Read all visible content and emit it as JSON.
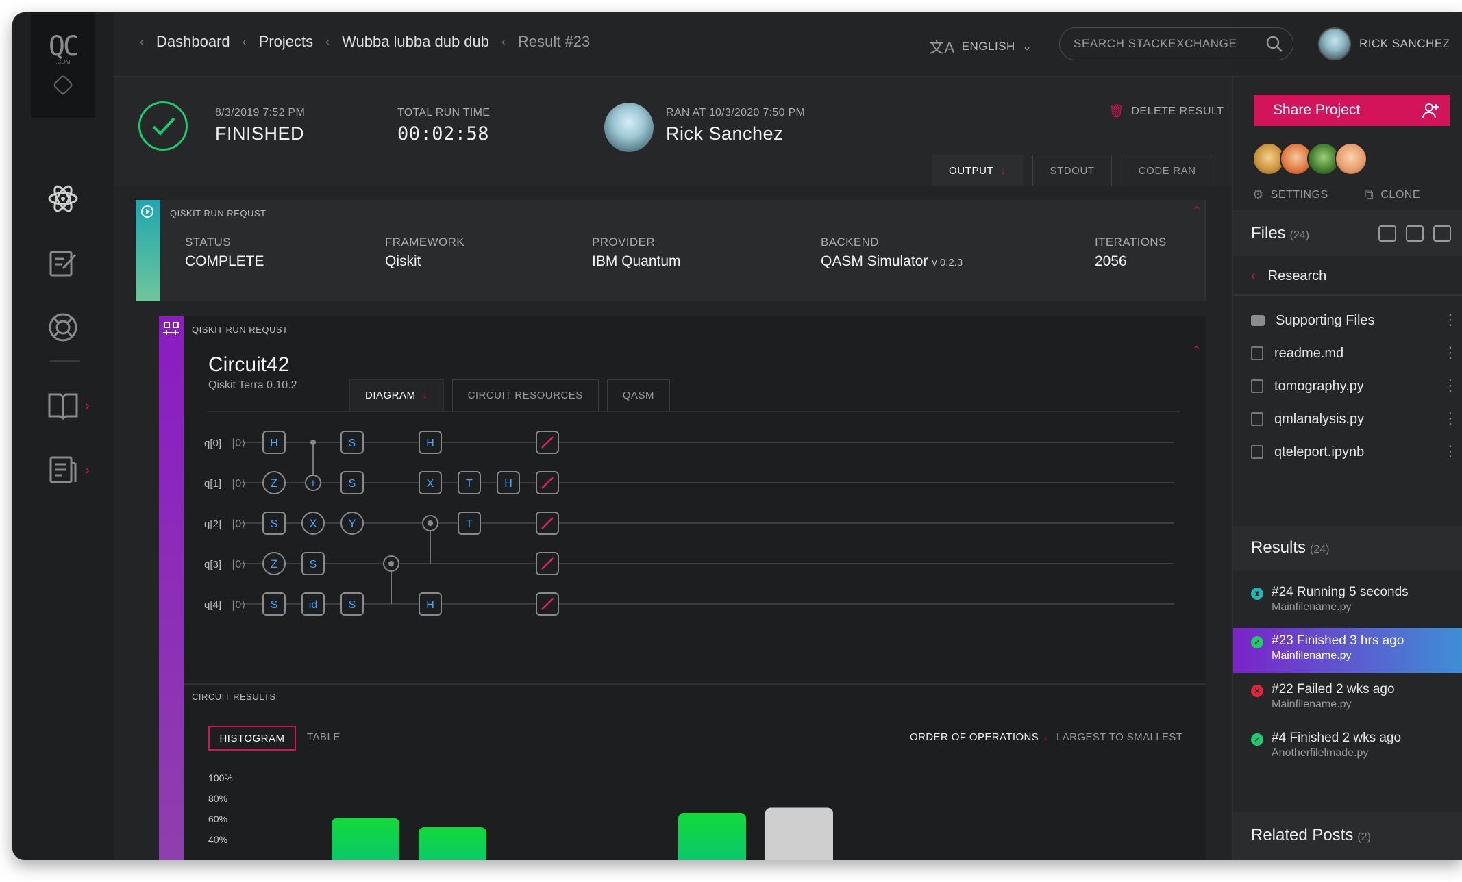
{
  "nav": {
    "logo_text": "QC",
    "logo_sub": ".COM"
  },
  "topbar": {
    "breadcrumbs": [
      "Dashboard",
      "Projects",
      "Wubba lubba dub dub",
      "Result #23"
    ],
    "language": "ENGLISH",
    "search_placeholder": "SEARCH STACKEXCHANGE",
    "user_name": "RICK SANCHEZ"
  },
  "header": {
    "date": "8/3/2019  7:52 PM",
    "status": "FINISHED",
    "run_time_label": "TOTAL RUN TIME",
    "run_time": "00:02:58",
    "ran_at": "RAN AT 10/3/2020  7:50 PM",
    "ran_by": "Rick Sanchez",
    "delete_label": "DELETE RESULT",
    "tabs": [
      "OUTPUT",
      "STDOUT",
      "CODE RAN"
    ]
  },
  "run_request": {
    "title": "QISKIT RUN REQUST",
    "status_label": "STATUS",
    "status": "COMPLETE",
    "framework_label": "FRAMEWORK",
    "framework": "Qiskit",
    "provider_label": "PROVIDER",
    "provider": "IBM Quantum",
    "backend_label": "BACKEND",
    "backend": "QASM Simulator",
    "backend_version": "v 0.2.3",
    "iterations_label": "ITERATIONS",
    "iterations": "2056"
  },
  "circuit": {
    "panel_title": "QISKIT RUN REQUST",
    "name": "Circuit42",
    "subtitle": "Qiskit Terra 0.10.2",
    "tabs": [
      "DIAGRAM",
      "CIRCUIT RESOURCES",
      "QASM"
    ],
    "qubits": [
      "q[0]",
      "q[1]",
      "q[2]",
      "q[3]",
      "q[4]"
    ],
    "ket": "|0⟩",
    "gates": [
      {
        "q": 0,
        "col": 0,
        "g": "H"
      },
      {
        "q": 0,
        "col": 2,
        "g": "S"
      },
      {
        "q": 0,
        "col": 4,
        "g": "H"
      },
      {
        "q": 0,
        "col": 7,
        "g": "M"
      },
      {
        "q": 1,
        "col": 0,
        "g": "Z"
      },
      {
        "q": 1,
        "col": 1,
        "g": "+"
      },
      {
        "q": 1,
        "col": 2,
        "g": "S"
      },
      {
        "q": 1,
        "col": 4,
        "g": "X"
      },
      {
        "q": 1,
        "col": 5,
        "g": "T"
      },
      {
        "q": 1,
        "col": 6,
        "g": "H"
      },
      {
        "q": 1,
        "col": 7,
        "g": "M"
      },
      {
        "q": 2,
        "col": 0,
        "g": "S"
      },
      {
        "q": 2,
        "col": 1,
        "g": "X"
      },
      {
        "q": 2,
        "col": 2,
        "g": "Y"
      },
      {
        "q": 2,
        "col": 4,
        "g": "+"
      },
      {
        "q": 2,
        "col": 5,
        "g": "T"
      },
      {
        "q": 2,
        "col": 7,
        "g": "M"
      },
      {
        "q": 3,
        "col": 0,
        "g": "Z"
      },
      {
        "q": 3,
        "col": 1,
        "g": "S"
      },
      {
        "q": 3,
        "col": 3,
        "g": "+"
      },
      {
        "q": 3,
        "col": 7,
        "g": "M"
      },
      {
        "q": 4,
        "col": 0,
        "g": "S"
      },
      {
        "q": 4,
        "col": 1,
        "g": "id"
      },
      {
        "q": 4,
        "col": 2,
        "g": "S"
      },
      {
        "q": 4,
        "col": 4,
        "g": "H"
      },
      {
        "q": 4,
        "col": 7,
        "g": "M"
      }
    ],
    "controls": [
      {
        "col": 1,
        "from": 0,
        "to": 1
      },
      {
        "col": 3,
        "from": 3,
        "to": 4
      },
      {
        "col": 4,
        "from": 2,
        "to": 3
      }
    ]
  },
  "results": {
    "title": "CIRCUIT RESULTS",
    "view_tabs": [
      "HISTOGRAM",
      "TABLE"
    ],
    "order_label": "ORDER OF OPERATIONS",
    "sort_label": "LARGEST TO SMALLEST"
  },
  "chart_data": {
    "type": "bar",
    "yticks": [
      "100%",
      "80%",
      "60%",
      "40%"
    ],
    "ylim": [
      40,
      100
    ],
    "bars": [
      {
        "value": 61,
        "color": "green"
      },
      {
        "value": 52,
        "color": "green"
      },
      {
        "value": 66,
        "color": "green"
      },
      {
        "value": 71,
        "color": "grey"
      }
    ],
    "colors": {
      "green_top": "#12d93a",
      "green_bottom": "#07c37a",
      "grey": "#cfcfcf"
    }
  },
  "sidebar": {
    "share_label": "Share Project",
    "settings_label": "SETTINGS",
    "clone_label": "CLONE",
    "files_title": "Files",
    "files_count": "(24)",
    "folder": "Research",
    "files": [
      {
        "name": "Supporting Files",
        "type": "folder"
      },
      {
        "name": "readme.md",
        "type": "file"
      },
      {
        "name": "tomography.py",
        "type": "file"
      },
      {
        "name": "qmlanalysis.py",
        "type": "file"
      },
      {
        "name": "qteleport.ipynb",
        "type": "file"
      }
    ],
    "results_title": "Results",
    "results_count": "(24)",
    "runs": [
      {
        "title": "#24 Running 5 seconds",
        "file": "Mainfilename.py",
        "status": "running"
      },
      {
        "title": "#23 Finished 3 hrs ago",
        "file": "Mainfilename.py",
        "status": "finished"
      },
      {
        "title": "#22 Failed 2 wks ago",
        "file": "Mainfilename.py",
        "status": "failed"
      },
      {
        "title": "#4 Finished 2 wks ago",
        "file": "Anotherfilelmade.py",
        "status": "finished"
      }
    ],
    "related_title": "Related Posts",
    "related_count": "(2)"
  },
  "colors": {
    "accent": "#d4145a",
    "success": "#1fc86a",
    "running": "#1eb7b7",
    "failed": "#e0263c"
  }
}
